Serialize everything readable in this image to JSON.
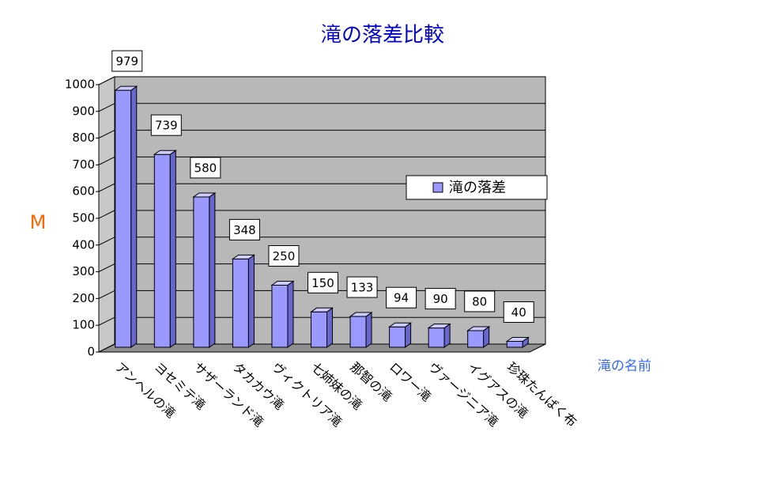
{
  "chart_data": {
    "type": "bar3d",
    "title": "滝の落差比較",
    "y_label": "M",
    "x_label": "滝の名前",
    "categories": [
      "アンヘルの滝",
      "ヨセミテ滝",
      "サザーランド滝",
      "タカカウ滝",
      "ヴィクトリア滝",
      "七姉妹の滝",
      "那智の滝",
      "ロワー滝",
      "ヴァージニア滝",
      "イグアスの滝",
      "珍珠たんばく布"
    ],
    "series": [
      {
        "name": "滝の落差",
        "color": "#9999ff",
        "values": [
          979,
          739,
          580,
          348,
          250,
          150,
          133,
          94,
          90,
          80,
          40
        ]
      }
    ],
    "ylim": [
      0,
      1000
    ],
    "yticks": [
      0,
      100,
      200,
      300,
      400,
      500,
      600,
      700,
      800,
      900,
      1000
    ],
    "grid": true
  }
}
